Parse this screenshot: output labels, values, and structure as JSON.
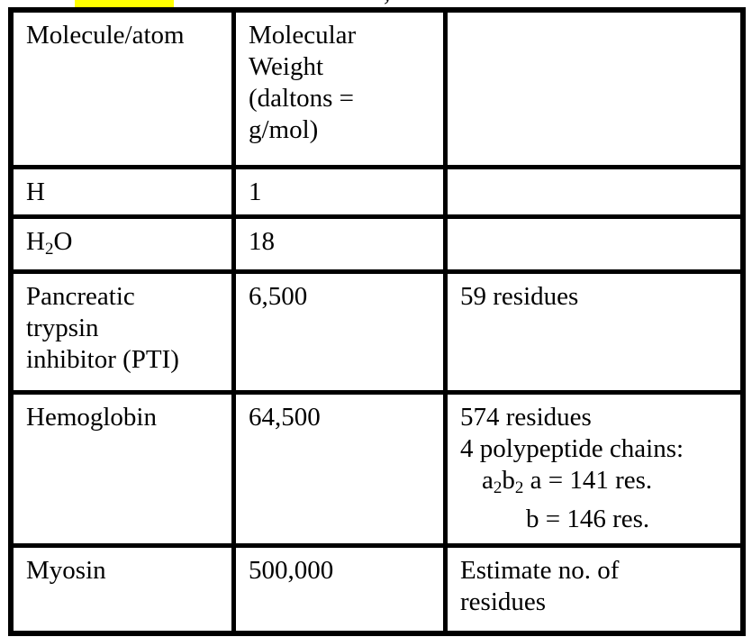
{
  "colors": {
    "background": "#ffffff",
    "border": "#000000",
    "text": "#000000",
    "highlight": "#ffff00"
  },
  "artifacts": {
    "cutoff_text": ",",
    "highlight_note": "partially visible yellow-highlighted text cut off at top edge"
  },
  "table": {
    "rows": [
      {
        "header": true,
        "cells": [
          {
            "lines": [
              {
                "indent": 0,
                "runs": [
                  {
                    "t": "Molecule/atom"
                  }
                ]
              }
            ]
          },
          {
            "lines": [
              {
                "indent": 0,
                "runs": [
                  {
                    "t": "Molecular"
                  }
                ]
              },
              {
                "indent": 0,
                "runs": [
                  {
                    "t": "Weight"
                  }
                ]
              },
              {
                "indent": 0,
                "runs": [
                  {
                    "t": "(daltons ="
                  }
                ]
              },
              {
                "indent": 0,
                "runs": [
                  {
                    "t": "g/mol)"
                  }
                ]
              }
            ]
          },
          {
            "lines": []
          }
        ]
      },
      {
        "cells": [
          {
            "lines": [
              {
                "indent": 0,
                "runs": [
                  {
                    "t": "H"
                  }
                ]
              }
            ]
          },
          {
            "lines": [
              {
                "indent": 0,
                "runs": [
                  {
                    "t": "1"
                  }
                ]
              }
            ]
          },
          {
            "lines": []
          }
        ]
      },
      {
        "cells": [
          {
            "lines": [
              {
                "indent": 0,
                "runs": [
                  {
                    "t": "H"
                  },
                  {
                    "t": "2",
                    "sub": true
                  },
                  {
                    "t": "O"
                  }
                ]
              }
            ]
          },
          {
            "lines": [
              {
                "indent": 0,
                "runs": [
                  {
                    "t": "18"
                  }
                ]
              }
            ]
          },
          {
            "lines": []
          }
        ]
      },
      {
        "cells": [
          {
            "lines": [
              {
                "indent": 0,
                "runs": [
                  {
                    "t": "Pancreatic"
                  }
                ]
              },
              {
                "indent": 0,
                "runs": [
                  {
                    "t": "trypsin"
                  }
                ]
              },
              {
                "indent": 0,
                "runs": [
                  {
                    "t": "inhibitor (PTI)"
                  }
                ]
              }
            ]
          },
          {
            "lines": [
              {
                "indent": 0,
                "runs": [
                  {
                    "t": "6,500"
                  }
                ]
              }
            ]
          },
          {
            "lines": [
              {
                "indent": 0,
                "runs": [
                  {
                    "t": "59 residues"
                  }
                ]
              }
            ]
          }
        ]
      },
      {
        "cells": [
          {
            "lines": [
              {
                "indent": 0,
                "runs": [
                  {
                    "t": "Hemoglobin"
                  }
                ]
              }
            ]
          },
          {
            "lines": [
              {
                "indent": 0,
                "runs": [
                  {
                    "t": "64,500"
                  }
                ]
              }
            ]
          },
          {
            "lines": [
              {
                "indent": 0,
                "runs": [
                  {
                    "t": "574 residues"
                  }
                ]
              },
              {
                "indent": 0,
                "runs": [
                  {
                    "t": "4 polypeptide chains:"
                  }
                ]
              },
              {
                "indent": 1,
                "runs": [
                  {
                    "t": "a"
                  },
                  {
                    "t": "2",
                    "sub": true
                  },
                  {
                    "t": "b"
                  },
                  {
                    "t": "2",
                    "sub": true
                  },
                  {
                    "t": " a = 141 res."
                  }
                ]
              },
              {
                "indent": 2,
                "runs": [
                  {
                    "t": "b = 146 res."
                  }
                ]
              }
            ]
          }
        ]
      },
      {
        "cells": [
          {
            "lines": [
              {
                "indent": 0,
                "runs": [
                  {
                    "t": "Myosin"
                  }
                ]
              }
            ]
          },
          {
            "lines": [
              {
                "indent": 0,
                "runs": [
                  {
                    "t": "500,000"
                  }
                ]
              }
            ]
          },
          {
            "lines": [
              {
                "indent": 0,
                "runs": [
                  {
                    "t": "Estimate no. of"
                  }
                ]
              },
              {
                "indent": 0,
                "runs": [
                  {
                    "t": "residues"
                  }
                ]
              }
            ]
          }
        ]
      }
    ]
  }
}
